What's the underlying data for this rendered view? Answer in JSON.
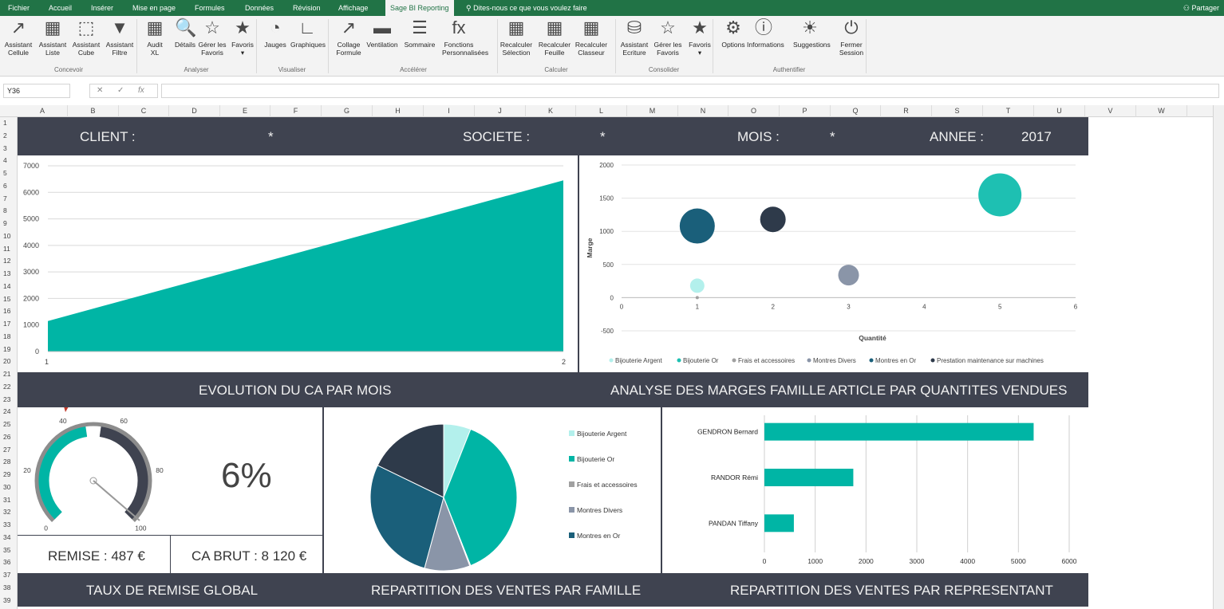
{
  "tabs": [
    {
      "label": "Fichier"
    },
    {
      "label": "Accueil"
    },
    {
      "label": "Insérer"
    },
    {
      "label": "Mise en page"
    },
    {
      "label": "Formules"
    },
    {
      "label": "Données"
    },
    {
      "label": "Révision"
    },
    {
      "label": "Affichage"
    },
    {
      "label": "Sage BI Reporting"
    }
  ],
  "tell_me": "Dites-nous ce que vous voulez faire",
  "share_label": "Partager",
  "ribbon": {
    "buttons": [
      {
        "label": "Assistant\nCellule",
        "icon": "cell-assistant-icon"
      },
      {
        "label": "Assistant\nListe",
        "icon": "list-assistant-icon"
      },
      {
        "label": "Assistant\nCube",
        "icon": "cube-assistant-icon"
      },
      {
        "label": "Assistant\nFiltre",
        "icon": "filter-assistant-icon"
      },
      {
        "label": "Audit\nXL",
        "icon": "audit-icon"
      },
      {
        "label": "Détails",
        "icon": "details-icon"
      },
      {
        "label": "Gérer les\nFavoris",
        "icon": "manage-favorites-icon"
      },
      {
        "label": "Favoris\n▾",
        "icon": "favorites-star-icon"
      },
      {
        "label": "Jauges",
        "icon": "gauge-icon"
      },
      {
        "label": "Graphiques",
        "icon": "chart-icon"
      },
      {
        "label": "Collage\nFormule",
        "icon": "paste-formula-icon"
      },
      {
        "label": "Ventilation",
        "icon": "breakdown-icon"
      },
      {
        "label": "Sommaire",
        "icon": "summary-icon"
      },
      {
        "label": "Fonctions\nPersonnalisées",
        "icon": "fx-icon"
      },
      {
        "label": "Recalculer\nSélection",
        "icon": "recalc-selection-icon"
      },
      {
        "label": "Recalculer\nFeuille",
        "icon": "recalc-sheet-icon"
      },
      {
        "label": "Recalculer\nClasseur",
        "icon": "recalc-workbook-icon"
      },
      {
        "label": "Assistant\nEcriture",
        "icon": "write-assistant-icon"
      },
      {
        "label": "Gérer les\nFavoris",
        "icon": "manage-favorites-icon"
      },
      {
        "label": "Favoris\n▾",
        "icon": "favorites-star-icon"
      },
      {
        "label": "Options",
        "icon": "options-gear-icon"
      },
      {
        "label": "Informations",
        "icon": "info-icon"
      },
      {
        "label": "Suggestions",
        "icon": "lightbulb-icon"
      },
      {
        "label": "Fermer\nSession",
        "icon": "power-icon"
      }
    ],
    "groups": [
      "Concevoir",
      "Analyser",
      "Visualiser",
      "Accélérer",
      "Calculer",
      "Consolider",
      "Authentifier"
    ]
  },
  "formula_bar": {
    "name_box": "Y36",
    "fx": "fx",
    "value": ""
  },
  "columns": [
    "A",
    "B",
    "C",
    "D",
    "E",
    "F",
    "G",
    "H",
    "I",
    "J",
    "K",
    "L",
    "M",
    "N",
    "O",
    "P",
    "Q",
    "R",
    "S",
    "T",
    "U",
    "V",
    "W"
  ],
  "rows": [
    "1",
    "2",
    "3",
    "4",
    "5",
    "6",
    "7",
    "8",
    "9",
    "10",
    "11",
    "12",
    "13",
    "14",
    "15",
    "16",
    "17",
    "18",
    "19",
    "20",
    "21",
    "22",
    "23",
    "24",
    "25",
    "26",
    "27",
    "28",
    "29",
    "30",
    "31",
    "32",
    "33",
    "34",
    "35",
    "36",
    "37",
    "38",
    "39"
  ],
  "header": {
    "client_label": "CLIENT :",
    "client_value": "*",
    "societe_label": "SOCIETE :",
    "societe_value": "*",
    "mois_label": "MOIS :",
    "mois_value": "*",
    "annee_label": "ANNEE :",
    "annee_value": "2017"
  },
  "section_titles": {
    "evolution": "EVOLUTION DU CA PAR MOIS",
    "marges": "ANALYSE DES MARGES FAMILLE ARTICLE PAR QUANTITES VENDUES",
    "remise": "TAUX DE REMISE GLOBAL",
    "famille": "REPARTITION DES VENTES PAR FAMILLE",
    "representant": "REPARTITION DES VENTES PAR REPRESENTANT"
  },
  "kpis": {
    "remise_pct": "6%",
    "remise": "REMISE : 487 €",
    "ca_brut": "CA BRUT : 8 120 €"
  },
  "colors": {
    "teal": "#00b5a5",
    "dark": "#3f4350",
    "band": "#3f4350"
  },
  "chart_data": [
    {
      "type": "area",
      "x": [
        1,
        2
      ],
      "values": [
        1150,
        6450
      ],
      "ylim": [
        0,
        7000
      ],
      "yticks": [
        "0",
        "1000",
        "2000",
        "3000",
        "4000",
        "5000",
        "6000",
        "7000"
      ],
      "xticks": [
        "1",
        "2"
      ],
      "color": "#00b5a5"
    },
    {
      "type": "scatter",
      "xlabel": "Quantité",
      "ylabel": "Marge",
      "xlim": [
        0,
        6
      ],
      "ylim": [
        -500,
        2000
      ],
      "xticks": [
        "0",
        "1",
        "2",
        "3",
        "4",
        "5",
        "6"
      ],
      "yticks": [
        "-500",
        "0",
        "500",
        "1000",
        "1500",
        "2000"
      ],
      "series": [
        {
          "name": "Bijouterie Argent",
          "x": 1,
          "y": 180,
          "size": 9,
          "color": "#b3f0ec"
        },
        {
          "name": "Bijouterie Or",
          "x": 5,
          "y": 1550,
          "size": 27,
          "color": "#1ec0b2"
        },
        {
          "name": "Frais et accessoires",
          "x": 1,
          "y": 0,
          "size": 2,
          "color": "#a0a0a0"
        },
        {
          "name": "Montres Divers",
          "x": 3,
          "y": 340,
          "size": 13,
          "color": "#8a95a8"
        },
        {
          "name": "Montres en Or",
          "x": 1,
          "y": 1080,
          "size": 22,
          "color": "#1a5f7a"
        },
        {
          "name": "Prestation maintenance sur machines",
          "x": 2,
          "y": 1180,
          "size": 16,
          "color": "#2e3a4a"
        }
      ]
    },
    {
      "type": "pie",
      "categories": [
        "Bijouterie Argent",
        "Bijouterie Or",
        "Frais et accessoires",
        "Montres Divers",
        "Montres en Or",
        "Prestation maintenance sur machines"
      ],
      "values": [
        6,
        38,
        0.2,
        10,
        28,
        17.8
      ],
      "colors": [
        "#b3f0ec",
        "#00b5a5",
        "#a0a0a0",
        "#8a95a8",
        "#1a5f7a",
        "#2e3a4a"
      ],
      "legend": [
        "Bijouterie Argent",
        "Bijouterie Or",
        "Frais et accessoires",
        "Montres Divers",
        "Montres en Or"
      ]
    },
    {
      "type": "bar",
      "orientation": "horizontal",
      "categories": [
        "GENDRON  Bernard",
        "RANDOR  Rémi",
        "PANDAN  Tiffany"
      ],
      "values": [
        5300,
        1750,
        580
      ],
      "xlim": [
        0,
        6000
      ],
      "xticks": [
        "0",
        "1000",
        "2000",
        "3000",
        "4000",
        "5000",
        "6000"
      ],
      "color": "#00b5a5"
    },
    {
      "type": "gauge",
      "value": 6,
      "ticks": [
        "0",
        "20",
        "40",
        "60",
        "80",
        "100"
      ]
    }
  ]
}
